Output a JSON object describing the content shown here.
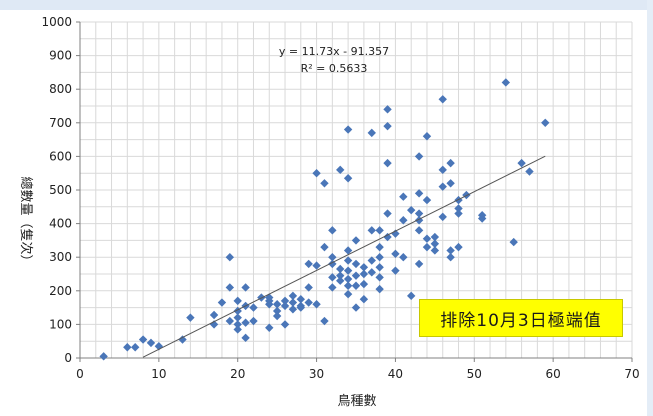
{
  "chart_data": {
    "type": "scatter",
    "xlabel": "鳥種數",
    "ylabel": "總數量（隻次）",
    "xlim": [
      0,
      70
    ],
    "ylim": [
      0,
      1000
    ],
    "xticks": [
      0,
      10,
      20,
      30,
      40,
      50,
      60,
      70
    ],
    "yticks": [
      0,
      100,
      200,
      300,
      400,
      500,
      600,
      700,
      800,
      900,
      1000
    ],
    "grid": true,
    "marker_color": "#4a76b8",
    "trendline_color": "#555555",
    "trendline": {
      "equation": "y = 11.73x - 91.357",
      "r_squared": "R² = 0.5633",
      "slope": 11.73,
      "intercept": -91.357,
      "x_range": [
        8,
        59
      ]
    },
    "annotation": "排除10月3日極端值",
    "annotation_color": "#ffff00",
    "points": [
      [
        3,
        5
      ],
      [
        6,
        32
      ],
      [
        7,
        32
      ],
      [
        8,
        55
      ],
      [
        9,
        45
      ],
      [
        10,
        35
      ],
      [
        13,
        55
      ],
      [
        14,
        120
      ],
      [
        17,
        100
      ],
      [
        17,
        128
      ],
      [
        18,
        165
      ],
      [
        19,
        300
      ],
      [
        19,
        210
      ],
      [
        19,
        110
      ],
      [
        20,
        170
      ],
      [
        20,
        140
      ],
      [
        20,
        120
      ],
      [
        20,
        100
      ],
      [
        20,
        85
      ],
      [
        21,
        210
      ],
      [
        21,
        155
      ],
      [
        21,
        105
      ],
      [
        21,
        60
      ],
      [
        22,
        150
      ],
      [
        22,
        110
      ],
      [
        23,
        180
      ],
      [
        24,
        180
      ],
      [
        24,
        170
      ],
      [
        24,
        160
      ],
      [
        24,
        90
      ],
      [
        25,
        160
      ],
      [
        25,
        140
      ],
      [
        25,
        125
      ],
      [
        26,
        170
      ],
      [
        26,
        155
      ],
      [
        26,
        100
      ],
      [
        27,
        185
      ],
      [
        27,
        165
      ],
      [
        27,
        145
      ],
      [
        28,
        175
      ],
      [
        28,
        155
      ],
      [
        28,
        150
      ],
      [
        29,
        280
      ],
      [
        29,
        210
      ],
      [
        29,
        165
      ],
      [
        30,
        550
      ],
      [
        30,
        275
      ],
      [
        30,
        160
      ],
      [
        31,
        520
      ],
      [
        31,
        330
      ],
      [
        31,
        110
      ],
      [
        32,
        380
      ],
      [
        32,
        300
      ],
      [
        32,
        280
      ],
      [
        32,
        240
      ],
      [
        32,
        210
      ],
      [
        33,
        560
      ],
      [
        33,
        265
      ],
      [
        33,
        245
      ],
      [
        33,
        230
      ],
      [
        34,
        680
      ],
      [
        34,
        535
      ],
      [
        34,
        320
      ],
      [
        34,
        290
      ],
      [
        34,
        260
      ],
      [
        34,
        235
      ],
      [
        34,
        215
      ],
      [
        34,
        190
      ],
      [
        35,
        350
      ],
      [
        35,
        280
      ],
      [
        35,
        245
      ],
      [
        35,
        215
      ],
      [
        35,
        150
      ],
      [
        36,
        270
      ],
      [
        36,
        250
      ],
      [
        36,
        220
      ],
      [
        36,
        175
      ],
      [
        37,
        670
      ],
      [
        37,
        380
      ],
      [
        37,
        290
      ],
      [
        37,
        255
      ],
      [
        38,
        380
      ],
      [
        38,
        330
      ],
      [
        38,
        300
      ],
      [
        38,
        270
      ],
      [
        38,
        240
      ],
      [
        38,
        205
      ],
      [
        39,
        740
      ],
      [
        39,
        690
      ],
      [
        39,
        580
      ],
      [
        39,
        430
      ],
      [
        39,
        360
      ],
      [
        40,
        370
      ],
      [
        40,
        310
      ],
      [
        40,
        260
      ],
      [
        41,
        480
      ],
      [
        41,
        410
      ],
      [
        41,
        300
      ],
      [
        42,
        440
      ],
      [
        42,
        185
      ],
      [
        43,
        600
      ],
      [
        43,
        490
      ],
      [
        43,
        430
      ],
      [
        43,
        410
      ],
      [
        43,
        380
      ],
      [
        43,
        280
      ],
      [
        44,
        660
      ],
      [
        44,
        470
      ],
      [
        44,
        355
      ],
      [
        44,
        330
      ],
      [
        45,
        360
      ],
      [
        45,
        340
      ],
      [
        45,
        320
      ],
      [
        46,
        770
      ],
      [
        46,
        560
      ],
      [
        46,
        510
      ],
      [
        46,
        420
      ],
      [
        47,
        580
      ],
      [
        47,
        520
      ],
      [
        47,
        320
      ],
      [
        47,
        300
      ],
      [
        48,
        470
      ],
      [
        48,
        445
      ],
      [
        48,
        430
      ],
      [
        48,
        330
      ],
      [
        49,
        485
      ],
      [
        51,
        425
      ],
      [
        51,
        415
      ],
      [
        54,
        820
      ],
      [
        55,
        345
      ],
      [
        56,
        580
      ],
      [
        57,
        555
      ],
      [
        59,
        700
      ]
    ]
  }
}
